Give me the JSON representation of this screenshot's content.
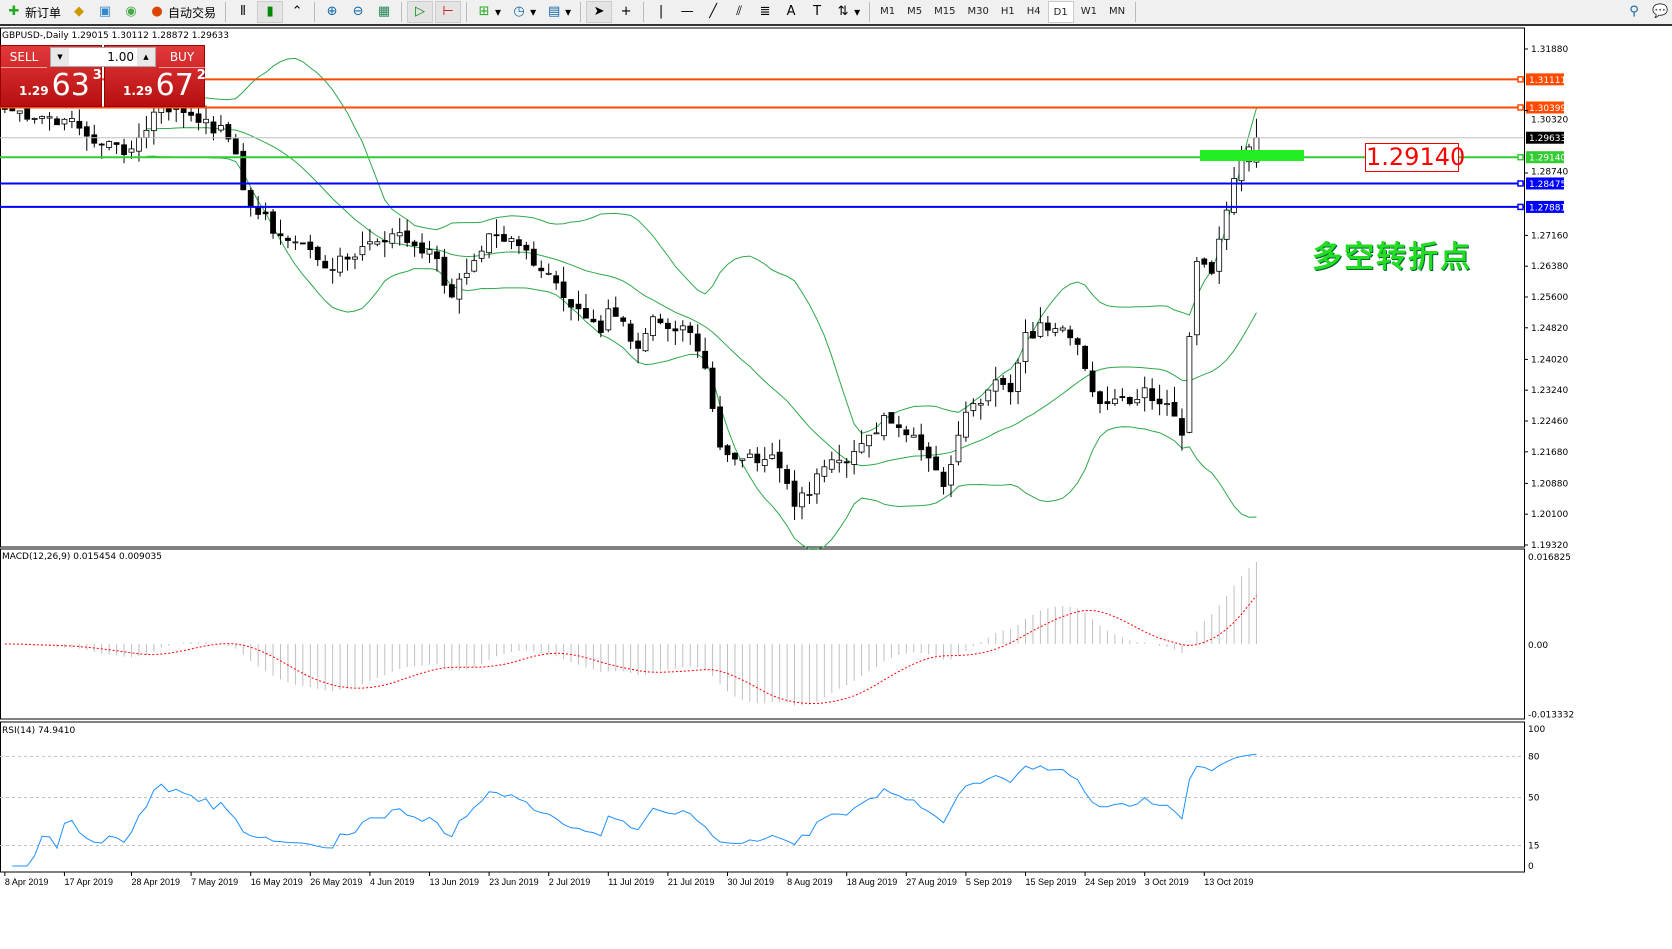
{
  "toolbar": {
    "new_order": "新订单",
    "auto_trading": "自动交易",
    "timeframes": [
      "M1",
      "M5",
      "M15",
      "M30",
      "H1",
      "H4",
      "D1",
      "W1",
      "MN"
    ],
    "active_timeframe": "D1"
  },
  "chart_header": {
    "symbol_info": "GBPUSD-,Daily  1.29015 1.30112 1.28872 1.29633"
  },
  "one_click": {
    "sell_label": "SELL",
    "buy_label": "BUY",
    "lot": "1.00",
    "sell_prefix": "1.29",
    "sell_big": "63",
    "sell_sup": "3",
    "buy_prefix": "1.29",
    "buy_big": "67",
    "buy_sup": "2"
  },
  "annotation": {
    "price_box": "1.29140",
    "text": "多空转折点"
  },
  "price_axis": {
    "ticks": [
      "1.31880",
      "1.30320",
      "1.28740",
      "1.27160",
      "1.26380",
      "1.25600",
      "1.24820",
      "1.24020",
      "1.23240",
      "1.22460",
      "1.21680",
      "1.20880",
      "1.20100",
      "1.19320"
    ]
  },
  "levels": [
    {
      "price": "1.31111",
      "color": "#ff4a00"
    },
    {
      "price": "1.30399",
      "color": "#ff4a00"
    },
    {
      "price": "1.29633",
      "color": "#c0c0c0",
      "bid": true
    },
    {
      "price": "1.29140",
      "color": "#33cc33"
    },
    {
      "price": "1.28475",
      "color": "#0000ff"
    },
    {
      "price": "1.27881",
      "color": "#0000ff"
    }
  ],
  "macd": {
    "label": "MACD(12,26,9) 0.015454 0.009035",
    "ticks": [
      "0.016825",
      "0.00",
      "-0.013332"
    ]
  },
  "rsi": {
    "label": "RSI(14) 74.9410",
    "ticks": [
      "100",
      "80",
      "50",
      "15",
      "0"
    ]
  },
  "date_axis": [
    "8 Apr 2019",
    "17 Apr 2019",
    "28 Apr 2019",
    "7 May 2019",
    "16 May 2019",
    "26 May 2019",
    "4 Jun 2019",
    "13 Jun 2019",
    "23 Jun 2019",
    "2 Jul 2019",
    "11 Jul 2019",
    "21 Jul 2019",
    "30 Jul 2019",
    "8 Aug 2019",
    "18 Aug 2019",
    "27 Aug 2019",
    "5 Sep 2019",
    "15 Sep 2019",
    "24 Sep 2019",
    "3 Oct 2019",
    "13 Oct 2019"
  ],
  "chart_data": {
    "type": "candlestick",
    "symbol": "GBPUSD",
    "period": "Daily",
    "ylim": [
      1.1932,
      1.3188
    ],
    "approx_closes": [
      [
        "8 Apr 2019",
        1.3035
      ],
      [
        "17 Apr 2019",
        1.301
      ],
      [
        "23 Apr 2019",
        1.2945
      ],
      [
        "28 Apr 2019",
        1.2935
      ],
      [
        "2 May 2019",
        1.305
      ],
      [
        "7 May 2019",
        1.302
      ],
      [
        "9 May 2019",
        1.301
      ],
      [
        "13 May 2019",
        1.296
      ],
      [
        "16 May 2019",
        1.279
      ],
      [
        "21 May 2019",
        1.2715
      ],
      [
        "26 May 2019",
        1.268
      ],
      [
        "29 May 2019",
        1.263
      ],
      [
        "4 Jun 2019",
        1.27
      ],
      [
        "7 Jun 2019",
        1.272
      ],
      [
        "13 Jun 2019",
        1.268
      ],
      [
        "17 Jun 2019",
        1.256
      ],
      [
        "19 Jun 2019",
        1.262
      ],
      [
        "23 Jun 2019",
        1.272
      ],
      [
        "27 Jun 2019",
        1.269
      ],
      [
        "2 Jul 2019",
        1.262
      ],
      [
        "7 Jul 2019",
        1.253
      ],
      [
        "10 Jul 2019",
        1.247
      ],
      [
        "11 Jul 2019",
        1.253
      ],
      [
        "16 Jul 2019",
        1.243
      ],
      [
        "18 Jul 2019",
        1.251
      ],
      [
        "21 Jul 2019",
        1.248
      ],
      [
        "24 Jul 2019",
        1.247
      ],
      [
        "26 Jul 2019",
        1.238
      ],
      [
        "29 Jul 2019",
        1.218
      ],
      [
        "1 Aug 2019",
        1.215
      ],
      [
        "6 Aug 2019",
        1.216
      ],
      [
        "9 Aug 2019",
        1.203
      ],
      [
        "12 Aug 2019",
        1.206
      ],
      [
        "14 Aug 2019",
        1.213
      ],
      [
        "18 Aug 2019",
        1.214
      ],
      [
        "21 Aug 2019",
        1.221
      ],
      [
        "23 Aug 2019",
        1.226
      ],
      [
        "28 Aug 2019",
        1.221
      ],
      [
        "2 Sep 2019",
        1.208
      ],
      [
        "4 Sep 2019",
        1.221
      ],
      [
        "6 Sep 2019",
        1.229
      ],
      [
        "10 Sep 2019",
        1.235
      ],
      [
        "12 Sep 2019",
        1.232
      ],
      [
        "15 Sep 2019",
        1.247
      ],
      [
        "19 Sep 2019",
        1.248
      ],
      [
        "23 Sep 2019",
        1.244
      ],
      [
        "25 Sep 2019",
        1.232
      ],
      [
        "27 Sep 2019",
        1.229
      ],
      [
        "1 Oct 2019",
        1.229
      ],
      [
        "3 Oct 2019",
        1.233
      ],
      [
        "7 Oct 2019",
        1.229
      ],
      [
        "9 Oct 2019",
        1.221
      ],
      [
        "10 Oct 2019",
        1.246
      ],
      [
        "11 Oct 2019",
        1.265
      ],
      [
        "14 Oct 2019",
        1.262
      ],
      [
        "16 Oct 2019",
        1.278
      ],
      [
        "17 Oct 2019",
        1.286
      ],
      [
        "18 Oct 2019",
        1.291
      ],
      [
        "20 Oct 2019",
        1.294
      ],
      [
        "21 Oct 2019",
        1.29633
      ]
    ],
    "last_bar": {
      "open": 1.29015,
      "high": 1.30112,
      "low": 1.28872,
      "close": 1.29633
    },
    "indicators": [
      "Bollinger Bands(20,2)",
      "MACD(12,26,9)",
      "RSI(14)"
    ]
  },
  "colors": {
    "bands": "#2ea84a",
    "macd_hist": "#c0c0c0",
    "macd_signal": "#ff0000",
    "rsi": "#1e90ff",
    "up_candle": "#ffffff",
    "down_candle": "#000000"
  }
}
